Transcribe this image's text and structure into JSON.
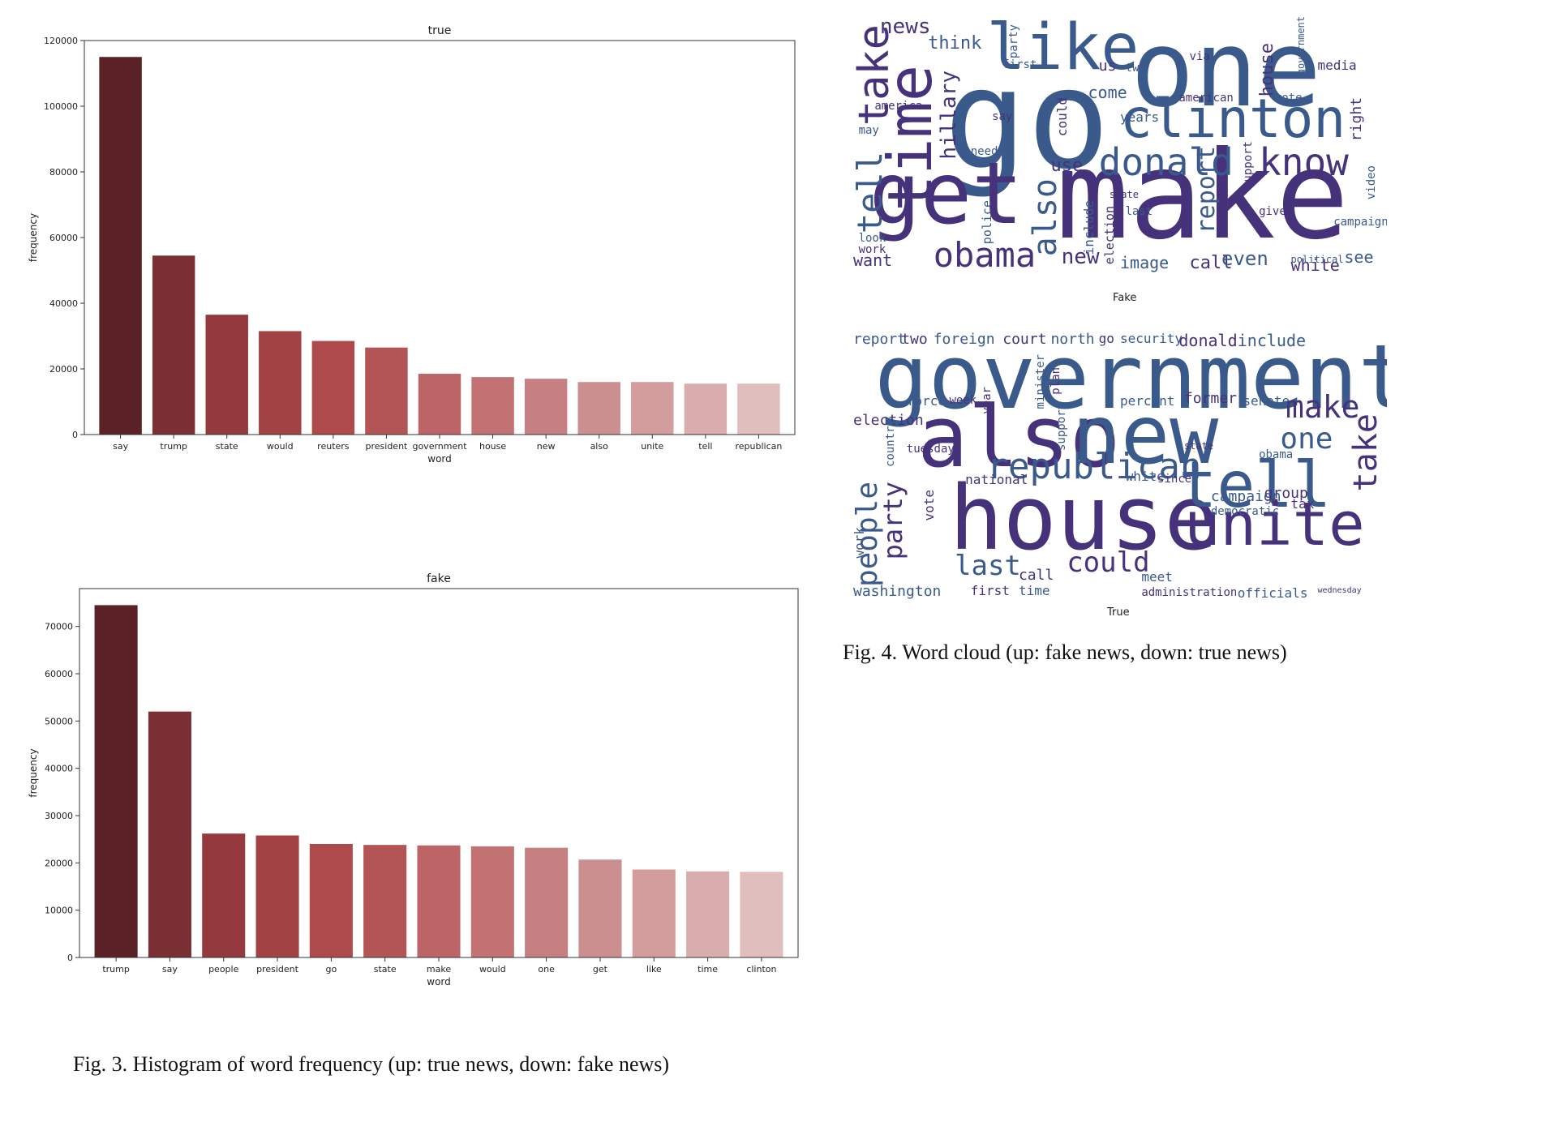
{
  "chart_data": [
    {
      "type": "bar",
      "title": "true",
      "xlabel": "word",
      "ylabel": "frequency",
      "ylim": [
        0,
        120000
      ],
      "yticks": [
        0,
        20000,
        40000,
        60000,
        80000,
        100000,
        120000
      ],
      "categories": [
        "say",
        "trump",
        "state",
        "would",
        "reuters",
        "president",
        "government",
        "house",
        "new",
        "also",
        "unite",
        "tell",
        "republican"
      ],
      "values": [
        115000,
        54500,
        36500,
        31500,
        28500,
        26500,
        18500,
        17500,
        17000,
        16000,
        16000,
        15500,
        15500
      ],
      "colors": [
        "#5a2226",
        "#7a2f33",
        "#943a3e",
        "#a34245",
        "#ae4a4b",
        "#b35456",
        "#bd6466",
        "#c27273",
        "#c78082",
        "#cc8f90",
        "#d39c9d",
        "#d9acad",
        "#e0bebe"
      ]
    },
    {
      "type": "bar",
      "title": "fake",
      "xlabel": "word",
      "ylabel": "frequency",
      "ylim": [
        0,
        78000
      ],
      "yticks": [
        0,
        10000,
        20000,
        30000,
        40000,
        50000,
        60000,
        70000
      ],
      "categories": [
        "trump",
        "say",
        "people",
        "president",
        "go",
        "state",
        "make",
        "would",
        "one",
        "get",
        "like",
        "time",
        "clinton"
      ],
      "values": [
        74500,
        52000,
        26200,
        25800,
        24000,
        23800,
        23700,
        23500,
        23200,
        20700,
        18600,
        18200,
        18100
      ],
      "colors": [
        "#5a2226",
        "#7a2f33",
        "#943a3e",
        "#a34245",
        "#ae4a4b",
        "#b35456",
        "#bd6466",
        "#c27273",
        "#c78082",
        "#cc8f90",
        "#d39c9d",
        "#d9acad",
        "#e0bebe"
      ]
    }
  ],
  "captions": {
    "fig3": "Fig. 3. Histogram of word frequency (up: true news, down: fake news)",
    "fig4": "Fig. 4. Word cloud (up: fake news, down: true news)"
  },
  "wordclouds": {
    "fake": {
      "label": "Fake",
      "words": [
        "go",
        "make",
        "one",
        "get",
        "like",
        "time",
        "clinton",
        "take",
        "donald",
        "know",
        "tell",
        "obama",
        "also",
        "news",
        "think",
        "hillary",
        "report",
        "use",
        "come",
        "new",
        "image",
        "call",
        "even",
        "white",
        "see",
        "want",
        "look",
        "work",
        "include",
        "election",
        "police",
        "could",
        "need",
        "say",
        "years",
        "american",
        "vote",
        "media",
        "campaign",
        "right",
        "video",
        "state",
        "last",
        "give",
        "may",
        "us",
        "two",
        "via",
        "first",
        "house",
        "government",
        "america",
        "party",
        "support",
        "political"
      ]
    },
    "true": {
      "label": "True",
      "words": [
        "government",
        "also",
        "new",
        "house",
        "tell",
        "unite",
        "republican",
        "make",
        "one",
        "take",
        "people",
        "party",
        "last",
        "could",
        "report",
        "two",
        "foreign",
        "court",
        "north",
        "go",
        "security",
        "donald",
        "include",
        "election",
        "force",
        "week",
        "percent",
        "former",
        "senate",
        "tuesday",
        "obama",
        "national",
        "white",
        "since",
        "campaign",
        "group",
        "democratic",
        "tax",
        "washington",
        "first",
        "time",
        "call",
        "meet",
        "administration",
        "officials",
        "wednesday",
        "work",
        "vote",
        "minister",
        "plan",
        "support",
        "year",
        "country",
        "state"
      ]
    }
  }
}
